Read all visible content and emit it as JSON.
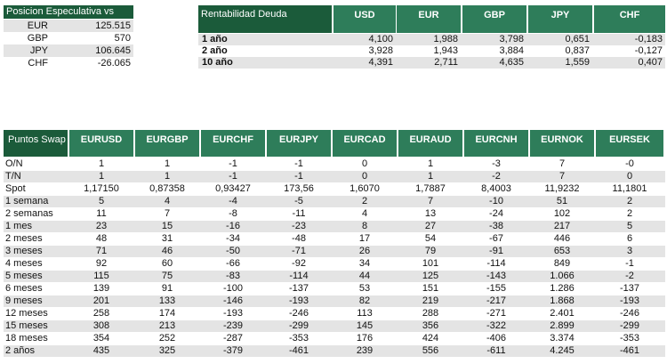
{
  "position": {
    "title": "Posicion Especulativa vs USD",
    "rows": [
      {
        "ccy": "EUR",
        "value": "125.515"
      },
      {
        "ccy": "GBP",
        "value": "570"
      },
      {
        "ccy": "JPY",
        "value": "106.645"
      },
      {
        "ccy": "CHF",
        "value": "-26.065"
      }
    ]
  },
  "yield": {
    "title": "Rentabilidad Deuda",
    "headers": [
      "USD",
      "EUR",
      "GBP",
      "JPY",
      "CHF"
    ],
    "rows": [
      {
        "label": "1 año",
        "values": [
          "4,100",
          "1,988",
          "3,798",
          "0,651",
          "-0,183"
        ]
      },
      {
        "label": "2 año",
        "values": [
          "3,928",
          "1,943",
          "3,884",
          "0,837",
          "-0,127"
        ]
      },
      {
        "label": "10 año",
        "values": [
          "4,391",
          "2,711",
          "4,635",
          "1,559",
          "0,407"
        ]
      }
    ]
  },
  "swap": {
    "title": "Puntos Swap",
    "headers": [
      "EURUSD",
      "EURGBP",
      "EURCHF",
      "EURJPY",
      "EURCAD",
      "EURAUD",
      "EURCNH",
      "EURNOK",
      "EURSEK"
    ],
    "rows": [
      {
        "label": "O/N",
        "values": [
          "1",
          "1",
          "-1",
          "-1",
          "0",
          "1",
          "-3",
          "7",
          "-0"
        ]
      },
      {
        "label": "T/N",
        "values": [
          "1",
          "1",
          "-1",
          "-1",
          "0",
          "1",
          "-2",
          "7",
          "0"
        ]
      },
      {
        "label": "Spot",
        "values": [
          "1,17150",
          "0,87358",
          "0,93427",
          "173,56",
          "1,6070",
          "1,7887",
          "8,4003",
          "11,9232",
          "11,1801"
        ]
      },
      {
        "label": "1 semana",
        "values": [
          "5",
          "4",
          "-4",
          "-5",
          "2",
          "7",
          "-10",
          "51",
          "2"
        ]
      },
      {
        "label": "2 semanas",
        "values": [
          "11",
          "7",
          "-8",
          "-11",
          "4",
          "13",
          "-24",
          "102",
          "2"
        ]
      },
      {
        "label": "1 mes",
        "values": [
          "23",
          "15",
          "-16",
          "-23",
          "8",
          "27",
          "-38",
          "217",
          "5"
        ]
      },
      {
        "label": "2 meses",
        "values": [
          "48",
          "31",
          "-34",
          "-48",
          "17",
          "54",
          "-67",
          "446",
          "6"
        ]
      },
      {
        "label": "3 meses",
        "values": [
          "71",
          "46",
          "-50",
          "-71",
          "26",
          "79",
          "-91",
          "653",
          "3"
        ]
      },
      {
        "label": "4 meses",
        "values": [
          "92",
          "60",
          "-66",
          "-92",
          "34",
          "101",
          "-114",
          "849",
          "-1"
        ]
      },
      {
        "label": "5 meses",
        "values": [
          "115",
          "75",
          "-83",
          "-114",
          "44",
          "125",
          "-143",
          "1.066",
          "-2"
        ]
      },
      {
        "label": "6 meses",
        "values": [
          "139",
          "91",
          "-100",
          "-137",
          "53",
          "151",
          "-155",
          "1.286",
          "-137"
        ]
      },
      {
        "label": "9 meses",
        "values": [
          "201",
          "133",
          "-146",
          "-193",
          "82",
          "219",
          "-217",
          "1.868",
          "-193"
        ]
      },
      {
        "label": "12 meses",
        "values": [
          "258",
          "174",
          "-193",
          "-246",
          "113",
          "288",
          "-271",
          "2.401",
          "-246"
        ]
      },
      {
        "label": "15 meses",
        "values": [
          "308",
          "213",
          "-239",
          "-299",
          "145",
          "356",
          "-322",
          "2.899",
          "-299"
        ]
      },
      {
        "label": "18 meses",
        "values": [
          "354",
          "252",
          "-287",
          "-353",
          "176",
          "424",
          "-406",
          "3.374",
          "-353"
        ]
      },
      {
        "label": "2 años",
        "values": [
          "435",
          "325",
          "-379",
          "-461",
          "239",
          "556",
          "-611",
          "4.245",
          "-461"
        ]
      }
    ]
  }
}
